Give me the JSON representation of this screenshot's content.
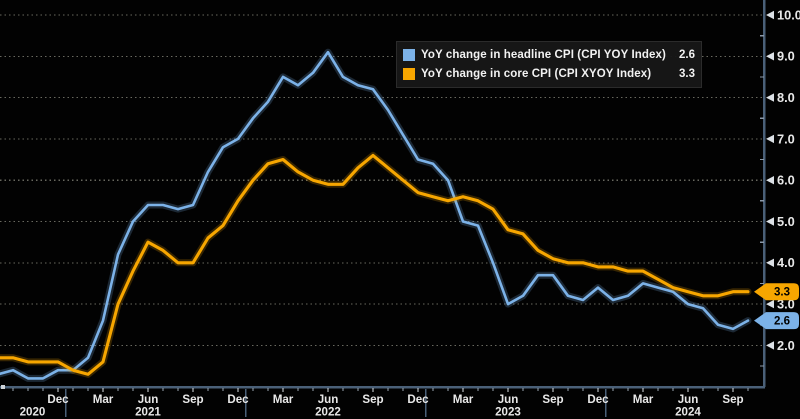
{
  "window": {
    "background": "#020202"
  },
  "chart_data": {
    "type": "line",
    "title": "",
    "xlabel": "",
    "ylabel": "",
    "grid": "dotted-horizontal",
    "legend_position": "top-center",
    "ylim": [
      1.0,
      10.4
    ],
    "yticks": [
      2,
      3,
      4,
      5,
      6,
      7,
      8,
      9,
      10
    ],
    "ytick_labels": [
      "2.0",
      "3.0",
      "4.0",
      "5.0",
      "6.0",
      "7.0",
      "8.0",
      "9.0",
      "10.0"
    ],
    "ytick_minor_step": 0.5,
    "x": [
      "2020-08",
      "2020-09",
      "2020-10",
      "2020-11",
      "2020-12",
      "2021-01",
      "2021-02",
      "2021-03",
      "2021-04",
      "2021-05",
      "2021-06",
      "2021-07",
      "2021-08",
      "2021-09",
      "2021-10",
      "2021-11",
      "2021-12",
      "2022-01",
      "2022-02",
      "2022-03",
      "2022-04",
      "2022-05",
      "2022-06",
      "2022-07",
      "2022-08",
      "2022-09",
      "2022-10",
      "2022-11",
      "2022-12",
      "2023-01",
      "2023-02",
      "2023-03",
      "2023-04",
      "2023-05",
      "2023-06",
      "2023-07",
      "2023-08",
      "2023-09",
      "2023-10",
      "2023-11",
      "2023-12",
      "2024-01",
      "2024-02",
      "2024-03",
      "2024-04",
      "2024-05",
      "2024-06",
      "2024-07",
      "2024-08",
      "2024-09",
      "2024-10"
    ],
    "month_ticks": [
      {
        "i": 4,
        "label": "Dec"
      },
      {
        "i": 7,
        "label": "Mar"
      },
      {
        "i": 10,
        "label": "Jun"
      },
      {
        "i": 13,
        "label": "Sep"
      },
      {
        "i": 16,
        "label": "Dec"
      },
      {
        "i": 19,
        "label": "Mar"
      },
      {
        "i": 22,
        "label": "Jun"
      },
      {
        "i": 25,
        "label": "Sep"
      },
      {
        "i": 28,
        "label": "Dec"
      },
      {
        "i": 31,
        "label": "Mar"
      },
      {
        "i": 34,
        "label": "Jun"
      },
      {
        "i": 37,
        "label": "Sep"
      },
      {
        "i": 40,
        "label": "Dec"
      },
      {
        "i": 43,
        "label": "Mar"
      },
      {
        "i": 46,
        "label": "Jun"
      },
      {
        "i": 49,
        "label": "Sep"
      }
    ],
    "year_labels": [
      {
        "i": 2.3,
        "label": "2020"
      },
      {
        "i": 10,
        "label": "2021"
      },
      {
        "i": 22,
        "label": "2022"
      },
      {
        "i": 34,
        "label": "2023"
      },
      {
        "i": 46,
        "label": "2024"
      }
    ],
    "year_dividers_i": [
      4.5,
      16.5,
      28.5,
      40.5
    ],
    "series": [
      {
        "name": "YoY change in headline CPI (CPI YOY Index)",
        "color": "#7CB2E8",
        "last_value": "2.6",
        "values": [
          1.3,
          1.4,
          1.2,
          1.2,
          1.4,
          1.4,
          1.7,
          2.6,
          4.2,
          5.0,
          5.4,
          5.4,
          5.3,
          5.4,
          6.2,
          6.8,
          7.0,
          7.5,
          7.9,
          8.5,
          8.3,
          8.6,
          9.1,
          8.5,
          8.3,
          8.2,
          7.7,
          7.1,
          6.5,
          6.4,
          6.0,
          5.0,
          4.9,
          4.0,
          3.0,
          3.2,
          3.7,
          3.7,
          3.2,
          3.1,
          3.4,
          3.1,
          3.2,
          3.5,
          3.4,
          3.3,
          3.0,
          2.9,
          2.5,
          2.4,
          2.6
        ]
      },
      {
        "name": "YoY change in core CPI (CPI XYOY Index)",
        "color": "#F7A600",
        "last_value": "3.3",
        "values": [
          1.7,
          1.7,
          1.6,
          1.6,
          1.6,
          1.4,
          1.3,
          1.6,
          3.0,
          3.8,
          4.5,
          4.3,
          4.0,
          4.0,
          4.6,
          4.9,
          5.5,
          6.0,
          6.4,
          6.5,
          6.2,
          6.0,
          5.9,
          5.9,
          6.3,
          6.6,
          6.3,
          6.0,
          5.7,
          5.6,
          5.5,
          5.6,
          5.5,
          5.3,
          4.8,
          4.7,
          4.3,
          4.1,
          4.0,
          4.0,
          3.9,
          3.9,
          3.8,
          3.8,
          3.6,
          3.4,
          3.3,
          3.2,
          3.2,
          3.3,
          3.3
        ]
      }
    ],
    "colors": {
      "axis": "#4A6078",
      "grid": "#6E6E64",
      "tick_arrow": "#DCE1E6",
      "label_text": "#E8E8E8",
      "badge_text": "#000000"
    }
  },
  "legend": {
    "items": [
      {
        "label": "YoY change in headline CPI (CPI YOY Index)",
        "value": "2.6",
        "color": "#7CB2E8"
      },
      {
        "label": "YoY change in core CPI (CPI XYOY Index)",
        "value": "3.3",
        "color": "#F7A600"
      }
    ]
  },
  "badges": [
    {
      "value": "3.3",
      "color": "#F7A600",
      "at": 3.3
    },
    {
      "value": "2.6",
      "color": "#7CB2E8",
      "at": 2.6
    }
  ]
}
